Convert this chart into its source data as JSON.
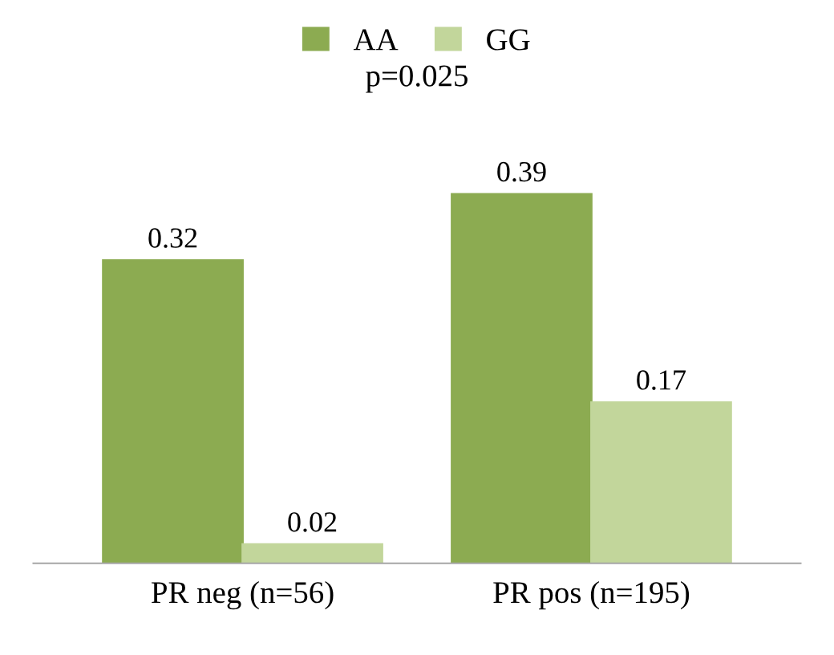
{
  "chart_data": {
    "type": "bar",
    "categories": [
      "PR neg (n=56)",
      "PR pos (n=195)"
    ],
    "series": [
      {
        "name": "AA",
        "color": "#8cab51",
        "values": [
          0.32,
          0.39
        ]
      },
      {
        "name": "GG",
        "color": "#c2d69b",
        "values": [
          0.02,
          0.17
        ]
      }
    ],
    "data_labels": true,
    "legend": "top",
    "grid": false,
    "annotations": [
      "p=0.025"
    ]
  }
}
